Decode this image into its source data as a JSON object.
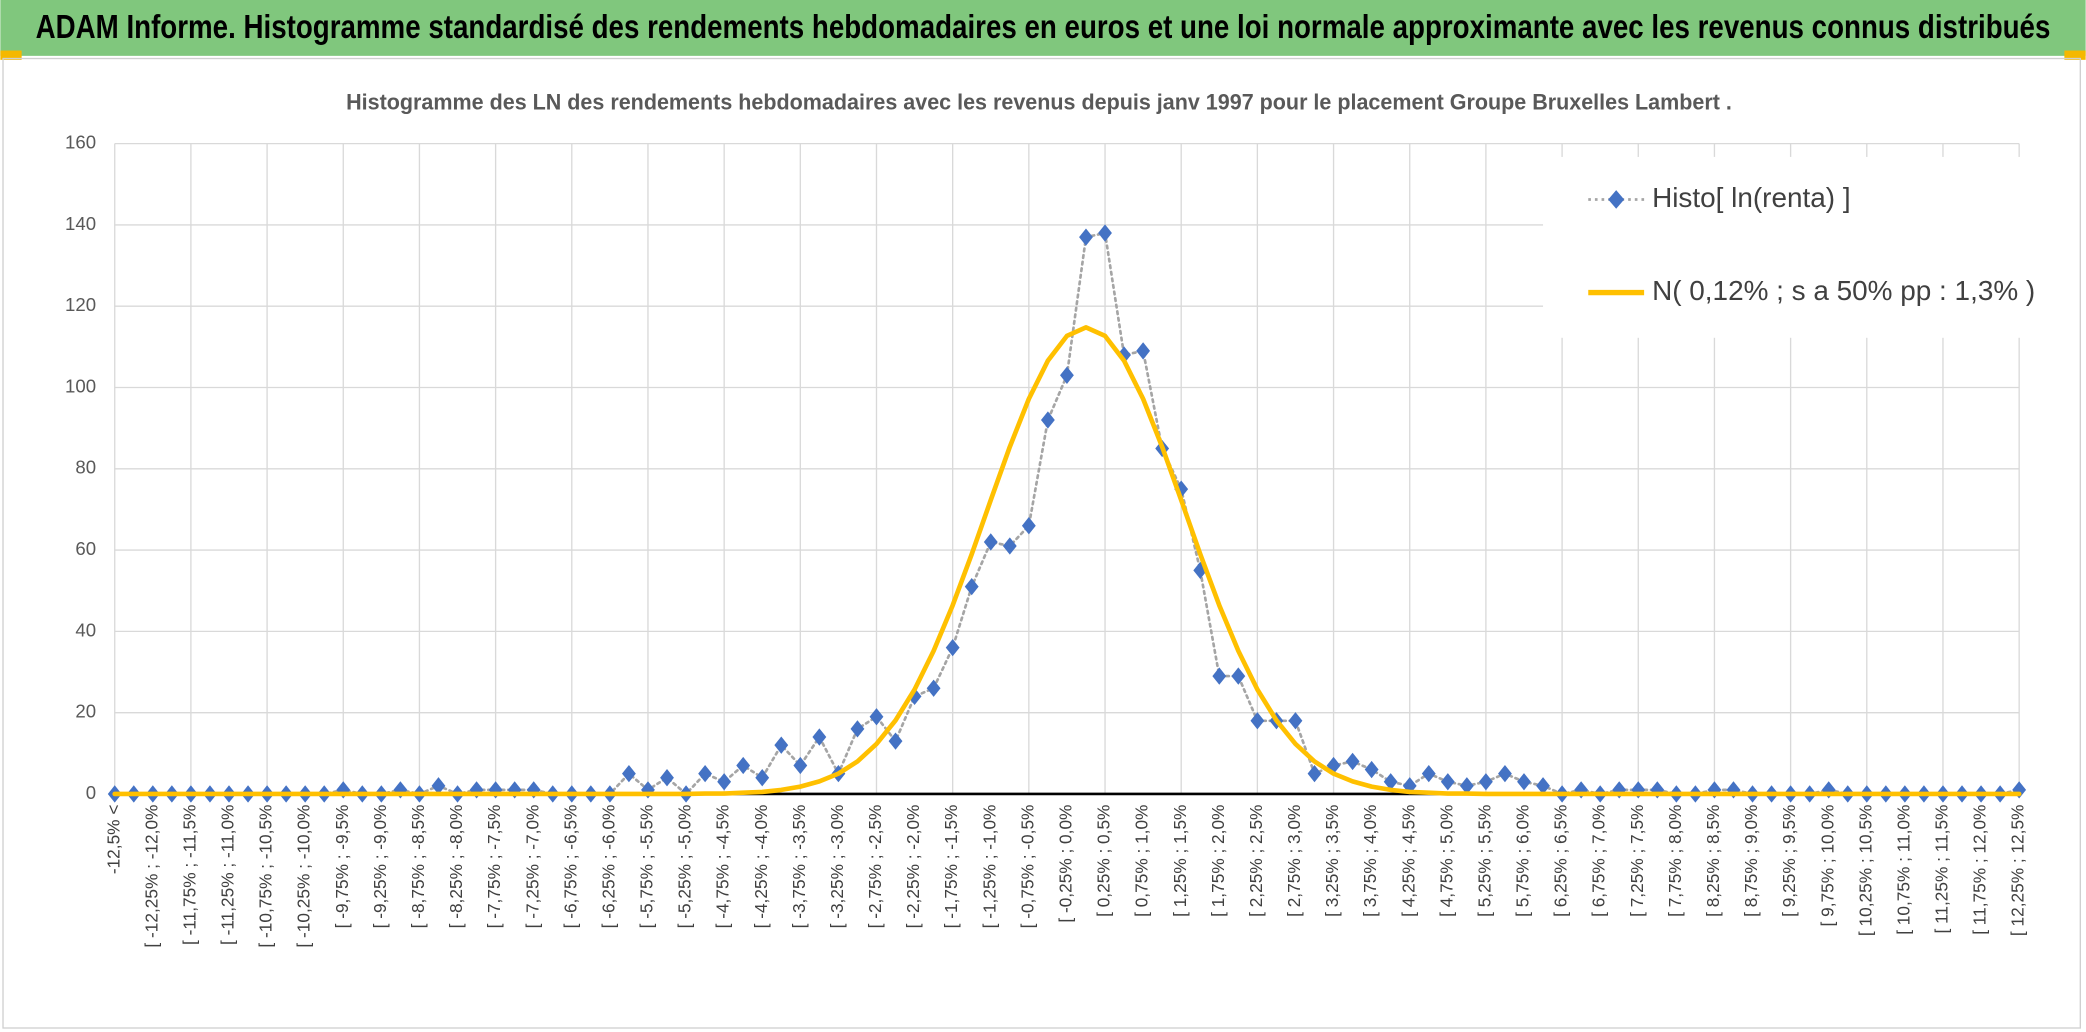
{
  "header": {
    "title": "ADAM Informe. Histogramme standardisé des rendements hebdomadaires en euros et une loi normale approximante avec les revenus connus distribués"
  },
  "chart_data": {
    "type": "line",
    "title": "Histogramme des LN des rendements hebdomadaires avec les revenus depuis janv 1997 pour le placement Groupe Bruxelles Lambert .",
    "categories": [
      "-12,5% <",
      null,
      "[ -12,25% ; -12,0%",
      null,
      "[ -11,75% ; -11,5%",
      null,
      "[ -11,25% ; -11,0%",
      null,
      "[ -10,75% ; -10,5%",
      null,
      "[ -10,25% ; -10,0%",
      null,
      "[ -9,75% ; -9,5%",
      null,
      "[ -9,25% ; -9,0%",
      null,
      "[ -8,75% ; -8,5%",
      null,
      "[ -8,25% ; -8,0%",
      null,
      "[ -7,75% ; -7,5%",
      null,
      "[ -7,25% ; -7,0%",
      null,
      "[ -6,75% ; -6,5%",
      null,
      "[ -6,25% ; -6,0%",
      null,
      "[ -5,75% ; -5,5%",
      null,
      "[ -5,25% ; -5,0%",
      null,
      "[ -4,75% ; -4,5%",
      null,
      "[ -4,25% ; -4,0%",
      null,
      "[ -3,75% ; -3,5%",
      null,
      "[ -3,25% ; -3,0%",
      null,
      "[ -2,75% ; -2,5%",
      null,
      "[ -2,25% ; -2,0%",
      null,
      "[ -1,75% ; -1,5%",
      null,
      "[ -1,25% ; -1,0%",
      null,
      "[ -0,75% ; -0,5%",
      null,
      "[ -0,25% ; 0,0%",
      null,
      "[ 0,25% ; 0,5%",
      null,
      "[ 0,75% ; 1,0%",
      null,
      "[ 1,25% ; 1,5%",
      null,
      "[ 1,75% ; 2,0%",
      null,
      "[ 2,25% ; 2,5%",
      null,
      "[ 2,75% ; 3,0%",
      null,
      "[ 3,25% ; 3,5%",
      null,
      "[ 3,75% ; 4,0%",
      null,
      "[ 4,25% ; 4,5%",
      null,
      "[ 4,75% ; 5,0%",
      null,
      "[ 5,25% ; 5,5%",
      null,
      "[ 5,75% ; 6,0%",
      null,
      "[ 6,25% ; 6,5%",
      null,
      "[ 6,75% ; 7,0%",
      null,
      "[ 7,25% ; 7,5%",
      null,
      "[ 7,75% ; 8,0%",
      null,
      "[ 8,25% ; 8,5%",
      null,
      "[ 8,75% ; 9,0%",
      null,
      "[ 9,25% ; 9,5%",
      null,
      "[ 9,75% ; 10,0%",
      null,
      "[ 10,25% ; 10,5%",
      null,
      "[ 10,75% ; 11,0%",
      null,
      "[ 11,25% ; 11,5%",
      null,
      "[ 11,75% ; 12,0%",
      null,
      "[ 12,25% ; 12,5%"
    ],
    "series": [
      {
        "name": "Histo[ ln(renta) ]",
        "color": "#4472c4",
        "line_color": "#a5a5a5",
        "line_style": "dotted",
        "marker": "diamond",
        "values": [
          0,
          0,
          0,
          0,
          0,
          0,
          0,
          0,
          0,
          0,
          0,
          0,
          1,
          0,
          0,
          1,
          0,
          2,
          0,
          1,
          1,
          1,
          1,
          0,
          0,
          0,
          0,
          5,
          1,
          4,
          0,
          5,
          3,
          7,
          4,
          12,
          7,
          14,
          5,
          16,
          19,
          13,
          24,
          26,
          36,
          51,
          62,
          61,
          66,
          92,
          103,
          137,
          138,
          108,
          109,
          85,
          75,
          55,
          29,
          29,
          18,
          18,
          18,
          5,
          7,
          8,
          6,
          3,
          2,
          5,
          3,
          2,
          3,
          5,
          3,
          2,
          0,
          1,
          0,
          1,
          1,
          1,
          0,
          0,
          1,
          1,
          0,
          0,
          0,
          0,
          1,
          0,
          0,
          0,
          0,
          0,
          0,
          0,
          0,
          0,
          1
        ]
      },
      {
        "name": "N( 0,12% ; s a 50% pp : 1,3% )",
        "color": "#ffc000",
        "line_style": "solid",
        "marker": "none",
        "values": [
          0,
          0,
          0,
          0,
          0,
          0,
          0,
          0,
          0,
          0,
          0,
          0,
          0,
          0,
          0,
          0,
          0,
          0,
          0,
          0,
          0,
          0,
          0,
          0,
          0,
          0,
          0,
          0,
          0,
          0,
          0,
          0.1,
          0.1,
          0.3,
          0.5,
          1.0,
          1.8,
          3.1,
          5.0,
          8.0,
          12.3,
          18.1,
          25.7,
          35.2,
          46.4,
          59.0,
          72.3,
          85.4,
          97.2,
          106.6,
          112.7,
          114.8,
          112.7,
          106.6,
          97.2,
          85.4,
          72.3,
          59.0,
          46.4,
          35.2,
          25.7,
          18.1,
          12.3,
          8.0,
          5.0,
          3.1,
          1.8,
          1.0,
          0.5,
          0.3,
          0.1,
          0.1,
          0,
          0,
          0,
          0,
          0,
          0,
          0,
          0,
          0,
          0,
          0,
          0,
          0,
          0,
          0,
          0,
          0,
          0,
          0,
          0,
          0,
          0,
          0,
          0,
          0,
          0,
          0,
          0,
          0
        ]
      }
    ],
    "ylim": [
      0,
      160
    ],
    "yticks": [
      0,
      20,
      40,
      60,
      80,
      100,
      120,
      140,
      160
    ],
    "grid": true,
    "legend": "upper right"
  }
}
